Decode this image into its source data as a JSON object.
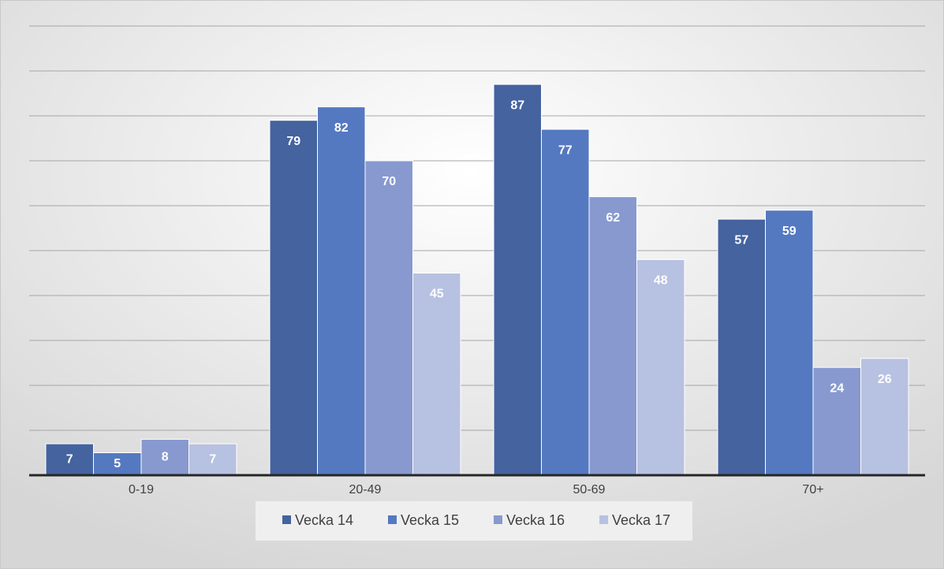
{
  "chart_data": {
    "type": "bar",
    "categories": [
      "0-19",
      "20-49",
      "50-69",
      "70+"
    ],
    "series": [
      {
        "name": "Vecka 14",
        "color": "#44639f",
        "values": [
          7,
          79,
          87,
          57
        ]
      },
      {
        "name": "Vecka 15",
        "color": "#5479c0",
        "values": [
          5,
          82,
          77,
          59
        ]
      },
      {
        "name": "Vecka 16",
        "color": "#8799cf",
        "values": [
          8,
          70,
          62,
          24
        ]
      },
      {
        "name": "Vecka 17",
        "color": "#b7c1e1",
        "values": [
          7,
          45,
          48,
          26
        ]
      }
    ],
    "ylim": [
      0,
      100
    ],
    "yticks": [
      0,
      10,
      20,
      30,
      40,
      50,
      60,
      70,
      80,
      90,
      100
    ],
    "grid": true,
    "legend": "bottom"
  }
}
